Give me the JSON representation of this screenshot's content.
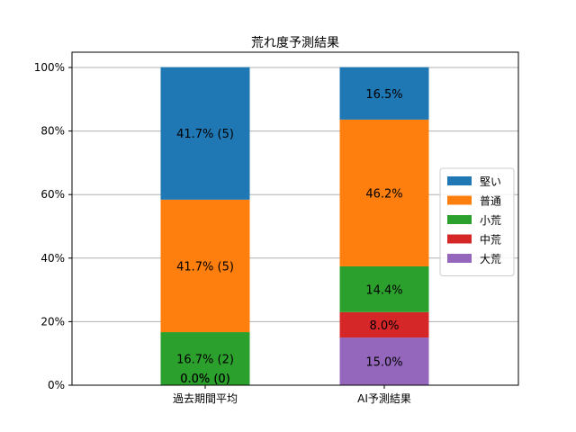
{
  "chart_data": {
    "type": "bar",
    "stacked": true,
    "title": "荒れ度予測結果",
    "xlabel": "",
    "ylabel": "",
    "ylim": [
      0,
      100
    ],
    "y_ticks": [
      "0%",
      "20%",
      "40%",
      "60%",
      "80%",
      "100%"
    ],
    "grid": "horizontal",
    "legend_position": "right",
    "categories": [
      "過去期間平均",
      "AI予測結果"
    ],
    "series": [
      {
        "name": "大荒",
        "color": "#9467bd",
        "values": [
          0,
          15.0
        ],
        "labels": [
          "",
          "15.0%"
        ]
      },
      {
        "name": "中荒",
        "color": "#d62728",
        "values": [
          0,
          8.0
        ],
        "labels": [
          "",
          "8.0%"
        ]
      },
      {
        "name": "小荒",
        "color": "#2ca02c",
        "values": [
          16.7,
          14.4
        ],
        "labels": [
          "16.7% (2)",
          "14.4%"
        ]
      },
      {
        "name": "普通",
        "color": "#ff7f0e",
        "values": [
          41.7,
          46.2
        ],
        "labels": [
          "41.7% (5)",
          "46.2%"
        ]
      },
      {
        "name": "堅い",
        "color": "#1f77b4",
        "values": [
          41.7,
          16.5
        ],
        "labels": [
          "41.7% (5)",
          "16.5%"
        ]
      }
    ],
    "zero_labels": [
      {
        "category": 0,
        "text": "0.0% (0)"
      },
      {
        "category": 0,
        "text": "0.0% (0)"
      }
    ],
    "legend_order": [
      "堅い",
      "普通",
      "小荒",
      "中荒",
      "大荒"
    ]
  }
}
